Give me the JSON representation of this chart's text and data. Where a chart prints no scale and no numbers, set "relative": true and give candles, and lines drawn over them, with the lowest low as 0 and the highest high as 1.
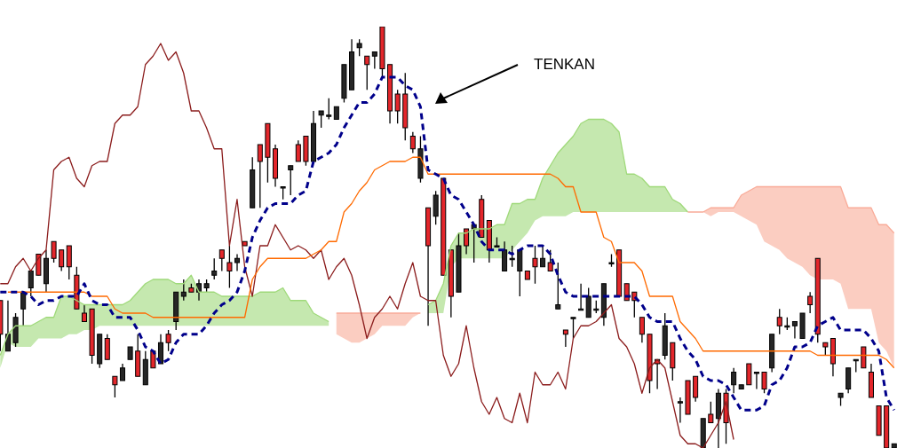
{
  "chart_data": {
    "type": "candlestick",
    "relative": true,
    "categories": [
      null,
      null,
      null,
      null,
      null,
      null,
      null,
      null,
      null,
      null,
      null,
      null,
      null,
      null,
      null,
      null,
      null,
      null,
      null,
      null,
      null,
      null,
      null,
      null,
      null,
      null,
      null,
      null,
      null,
      null,
      null,
      null,
      null,
      null,
      null,
      null,
      null,
      null,
      null,
      null,
      null,
      null,
      null,
      null,
      null,
      null,
      null,
      null,
      null,
      null,
      null,
      null,
      null,
      null,
      null,
      null,
      null,
      null,
      null,
      null,
      null,
      null,
      null,
      null,
      null,
      null,
      null,
      null,
      null,
      null,
      null,
      null,
      null,
      null,
      null,
      null,
      null,
      null,
      null,
      null,
      null,
      null,
      null,
      null,
      null,
      null,
      null,
      null,
      null,
      null,
      null,
      null,
      null,
      null,
      null,
      null,
      null,
      null,
      null,
      null,
      null,
      null,
      null,
      null,
      null,
      null,
      null,
      null,
      null,
      null,
      null,
      null,
      null,
      null,
      null,
      null,
      null,
      null
    ],
    "ohlc": [
      [
        0.35,
        0.35,
        0.23,
        0.27
      ],
      [
        0.23,
        0.35,
        0.23,
        0.27
      ],
      [
        0.25,
        0.32,
        0.24,
        0.31
      ],
      [
        0.33,
        0.37,
        0.29,
        0.37
      ],
      [
        0.38,
        0.42,
        0.36,
        0.42
      ],
      [
        0.46,
        0.46,
        0.41,
        0.41
      ],
      [
        0.39,
        0.47,
        0.37,
        0.45
      ],
      [
        0.49,
        0.49,
        0.44,
        0.45
      ],
      [
        0.47,
        0.47,
        0.42,
        0.43
      ],
      [
        0.48,
        0.48,
        0.4,
        0.43
      ],
      [
        0.41,
        0.43,
        0.33,
        0.33
      ],
      [
        0.32,
        0.34,
        0.3,
        0.3
      ],
      [
        0.33,
        0.33,
        0.2,
        0.22
      ],
      [
        0.2,
        0.27,
        0.19,
        0.27
      ],
      [
        0.26,
        0.27,
        0.21,
        0.21
      ],
      [
        0.17,
        0.17,
        0.12,
        0.15
      ],
      [
        0.16,
        0.2,
        0.16,
        0.19
      ],
      [
        0.21,
        0.24,
        0.21,
        0.24
      ],
      [
        0.23,
        0.27,
        0.17,
        0.17
      ],
      [
        0.15,
        0.23,
        0.15,
        0.21
      ],
      [
        0.23,
        0.23,
        0.19,
        0.19
      ],
      [
        0.2,
        0.27,
        0.2,
        0.25
      ],
      [
        0.27,
        0.28,
        0.23,
        0.25
      ],
      [
        0.3,
        0.37,
        0.28,
        0.37
      ],
      [
        0.36,
        0.4,
        0.35,
        0.37
      ],
      [
        0.38,
        0.39,
        0.37,
        0.37
      ],
      [
        0.37,
        0.4,
        0.35,
        0.39
      ],
      [
        0.38,
        0.4,
        0.37,
        0.39
      ],
      [
        0.41,
        0.45,
        0.4,
        0.42
      ],
      [
        0.47,
        0.47,
        0.42,
        0.45
      ],
      [
        0.44,
        0.48,
        0.38,
        0.42
      ],
      [
        0.44,
        0.46,
        0.42,
        0.45
      ],
      [
        0.49,
        0.49,
        0.48,
        0.48
      ],
      [
        0.57,
        0.69,
        0.57,
        0.66
      ],
      [
        0.72,
        0.72,
        0.57,
        0.68
      ],
      [
        0.77,
        0.77,
        0.63,
        0.69
      ],
      [
        0.71,
        0.72,
        0.62,
        0.64
      ],
      [
        0.62,
        0.62,
        0.59,
        0.62
      ],
      [
        0.66,
        0.67,
        0.6,
        0.67
      ],
      [
        0.72,
        0.73,
        0.68,
        0.68
      ],
      [
        0.74,
        0.74,
        0.67,
        0.68
      ],
      [
        0.68,
        0.8,
        0.68,
        0.77
      ],
      [
        0.79,
        0.8,
        0.76,
        0.8
      ],
      [
        0.79,
        0.83,
        0.78,
        0.79
      ],
      [
        0.78,
        0.81,
        0.78,
        0.81
      ],
      [
        0.83,
        0.91,
        0.82,
        0.91
      ],
      [
        0.85,
        0.97,
        0.85,
        0.94
      ],
      [
        0.95,
        0.97,
        0.93,
        0.96
      ],
      [
        0.93,
        0.93,
        0.85,
        0.91
      ],
      [
        0.93,
        0.94,
        0.9,
        0.94
      ],
      [
        1,
        1,
        0.88,
        0.9
      ],
      [
        0.91,
        0.91,
        0.77,
        0.8
      ],
      [
        0.84,
        0.85,
        0.77,
        0.8
      ],
      [
        0.84,
        0.89,
        0.73,
        0.76
      ],
      [
        0.74,
        0.75,
        0.7,
        0.71
      ],
      [
        0.64,
        0.74,
        0.63,
        0.71
      ],
      [
        0.57,
        0.57,
        0.29,
        0.48
      ],
      [
        0.55,
        0.61,
        0.53,
        0.6
      ],
      [
        0.64,
        0.64,
        0.41,
        0.41
      ],
      [
        0.47,
        0.47,
        0.31,
        0.36
      ],
      [
        0.37,
        0.51,
        0.37,
        0.48
      ],
      [
        0.52,
        0.52,
        0.46,
        0.48
      ],
      [
        0.52,
        0.53,
        0.44,
        0.53
      ],
      [
        0.59,
        0.6,
        0.5,
        0.5
      ],
      [
        0.54,
        0.54,
        0.44,
        0.47
      ],
      [
        0.48,
        0.5,
        0.48,
        0.48
      ],
      [
        0.42,
        0.49,
        0.42,
        0.47
      ],
      [
        0.45,
        0.48,
        0.43,
        0.45
      ],
      [
        0.42,
        0.47,
        0.36,
        0.47
      ],
      [
        0.42,
        0.42,
        0.4,
        0.4
      ],
      [
        0.45,
        0.48,
        0.39,
        0.43
      ],
      [
        0.43,
        0.48,
        0.43,
        0.45
      ],
      [
        0.44,
        0.47,
        0.42,
        0.42
      ],
      [
        0.33,
        0.44,
        0.33,
        0.34
      ],
      [
        0.28,
        0.28,
        0.24,
        0.27
      ],
      [
        0.31,
        0.31,
        0.26,
        0.31
      ],
      [
        0.33,
        0.39,
        0.33,
        0.33
      ],
      [
        0.31,
        0.38,
        0.31,
        0.36
      ],
      [
        0.33,
        0.35,
        0.32,
        0.33
      ],
      [
        0.31,
        0.39,
        0.29,
        0.39
      ],
      [
        0.44,
        0.46,
        0.43,
        0.44
      ],
      [
        0.47,
        0.47,
        0.36,
        0.36
      ],
      [
        0.39,
        0.39,
        0.35,
        0.35
      ],
      [
        0.37,
        0.37,
        0.31,
        0.35
      ],
      [
        0.31,
        0.31,
        0.25,
        0.27
      ],
      [
        0.27,
        0.27,
        0.13,
        0.16
      ],
      [
        0.21,
        0.21,
        0.14,
        0.2
      ],
      [
        0.22,
        0.32,
        0.21,
        0.29
      ],
      [
        0.25,
        0.25,
        0.16,
        0.19
      ],
      [
        0.11,
        0.12,
        0.06,
        0.11
      ],
      [
        0.16,
        0.16,
        0.08,
        0.08
      ],
      [
        0.17,
        0.17,
        0.11,
        0.12
      ],
      [
        0,
        0.07,
        0,
        0.07
      ],
      [
        0.08,
        0.11,
        0.06,
        0.06
      ],
      [
        0.07,
        0.14,
        0,
        0.13
      ],
      [
        0.13,
        0.14,
        0.01,
        0.06
      ],
      [
        0.15,
        0.19,
        0.13,
        0.18
      ],
      [
        0.14,
        0.15,
        0.14,
        0.15
      ],
      [
        0.2,
        0.2,
        0.15,
        0.15
      ],
      [
        0.18,
        0.18,
        0.14,
        0.18
      ],
      [
        0.18,
        0.18,
        0.13,
        0.14
      ],
      [
        0.19,
        0.27,
        0.18,
        0.27
      ],
      [
        0.31,
        0.33,
        0.27,
        0.29
      ],
      [
        0.29,
        0.31,
        0.28,
        0.29
      ],
      [
        0.29,
        0.3,
        0.26,
        0.3
      ],
      [
        0.26,
        0.32,
        0.26,
        0.32
      ],
      [
        0.36,
        0.37,
        0.32,
        0.34
      ],
      [
        0.45,
        0.45,
        0.25,
        0.27
      ],
      [
        0.25,
        0.25,
        0.22,
        0.24
      ],
      [
        0.26,
        0.26,
        0.17,
        0.2
      ],
      [
        0.12,
        0.13,
        0.1,
        0.13
      ],
      [
        0.14,
        0.19,
        0.13,
        0.19
      ],
      [
        0.21,
        0.21,
        0.18,
        0.21
      ],
      [
        0.24,
        0.24,
        0.19,
        0.19
      ],
      [
        0.18,
        0.2,
        0.12,
        0.12
      ],
      [
        0.1,
        0.1,
        0.03,
        0.03
      ],
      [
        0.1,
        0.1,
        0,
        0
      ],
      [
        0,
        0.01,
        0,
        0.01
      ]
    ],
    "colors": [
      "#e3262b",
      "#262626",
      "#262626",
      "#262626",
      "#262626",
      "#e3262b",
      "#262626",
      "#e3262b",
      "#e3262b",
      "#e3262b",
      "#e3262b",
      "#e3262b",
      "#e3262b",
      "#262626",
      "#e3262b",
      "#e3262b",
      "#262626",
      "#262626",
      "#e3262b",
      "#262626",
      "#e3262b",
      "#262626",
      "#e3262b",
      "#262626",
      "#262626",
      "#e3262b",
      "#262626",
      "#262626",
      "#262626",
      "#e3262b",
      "#e3262b",
      "#262626",
      "#e3262b",
      "#262626",
      "#e3262b",
      "#e3262b",
      "#e3262b",
      "#262626",
      "#262626",
      "#e3262b",
      "#e3262b",
      "#262626",
      "#262626",
      "#262626",
      "#262626",
      "#262626",
      "#262626",
      "#262626",
      "#e3262b",
      "#262626",
      "#e3262b",
      "#e3262b",
      "#e3262b",
      "#e3262b",
      "#e3262b",
      "#262626",
      "#e3262b",
      "#262626",
      "#e3262b",
      "#e3262b",
      "#262626",
      "#e3262b",
      "#262626",
      "#e3262b",
      "#e3262b",
      "#262626",
      "#262626",
      "#262626",
      "#262626",
      "#e3262b",
      "#e3262b",
      "#262626",
      "#e3262b",
      "#262626",
      "#e3262b",
      "#262626",
      "#262626",
      "#262626",
      "#262626",
      "#262626",
      "#262626",
      "#e3262b",
      "#e3262b",
      "#e3262b",
      "#e3262b",
      "#e3262b",
      "#e3262b",
      "#262626",
      "#e3262b",
      "#262626",
      "#e3262b",
      "#e3262b",
      "#262626",
      "#e3262b",
      "#262626",
      "#e3262b",
      "#262626",
      "#262626",
      "#e3262b",
      "#262626",
      "#e3262b",
      "#262626",
      "#e3262b",
      "#262626",
      "#262626",
      "#262626",
      "#e3262b",
      "#e3262b",
      "#e3262b",
      "#e3262b",
      "#262626",
      "#262626",
      "#262626",
      "#e3262b",
      "#e3262b",
      "#e3262b",
      "#e3262b",
      "#262626"
    ],
    "series": [
      {
        "type": "line",
        "color": "#9fd97a",
        "values": [
          0.22,
          0.27,
          0.29,
          0.29,
          0.29,
          0.3,
          0.31,
          0.31,
          0.36,
          0.36,
          0.35,
          0.34,
          0.34,
          0.34,
          0.34,
          0.34,
          0.34,
          0.35,
          0.37,
          0.39,
          0.4,
          0.4,
          0.4,
          0.39,
          0.39,
          0.41,
          0.37,
          0.37,
          0.37,
          0.36,
          0.36,
          0.36,
          0.36,
          0.36,
          0.37,
          0.37,
          0.37,
          0.38,
          0.35,
          0.35,
          0.35,
          0.32,
          0.31,
          0.3,
          null,
          null,
          null,
          null,
          null,
          null,
          null,
          null,
          null,
          null,
          null,
          null,
          0.34,
          0.35,
          0.39,
          0.48,
          0.51,
          0.51,
          0.52,
          0.52,
          0.52,
          0.53,
          0.53,
          0.58,
          0.58,
          0.59,
          0.59,
          0.64,
          0.67,
          0.7,
          0.72,
          0.74,
          0.77,
          0.78,
          0.78,
          0.78,
          0.77,
          0.75,
          0.65,
          0.65,
          0.64,
          0.62,
          0.62,
          0.62,
          0.59,
          0.58,
          0.56,
          null,
          null,
          null,
          null,
          null,
          null,
          null,
          null,
          null,
          null,
          null,
          null,
          null,
          null,
          null,
          null,
          null,
          null,
          null,
          null,
          null,
          null,
          null,
          null,
          null,
          null,
          null
        ],
        "upper": [
          0.22,
          0.27,
          0.29,
          0.29,
          0.29,
          0.3,
          0.31,
          0.31,
          0.36,
          0.36,
          0.35,
          0.34,
          0.34,
          0.34,
          0.34,
          0.34,
          0.34,
          0.35,
          0.37,
          0.39,
          0.4,
          0.4,
          0.4,
          0.39,
          0.39,
          0.41,
          0.37,
          0.37,
          0.37,
          0.36,
          0.36,
          0.36,
          0.36,
          0.36,
          0.37,
          0.37,
          0.37,
          0.38,
          0.35,
          0.35,
          0.35,
          0.32,
          0.31,
          0.3,
          null,
          null,
          null,
          null,
          null,
          null,
          null,
          null,
          null,
          null,
          null,
          null,
          0.34,
          0.35,
          0.39,
          0.48,
          0.51,
          0.51,
          0.52,
          0.52,
          0.52,
          0.53,
          0.53,
          0.58,
          0.58,
          0.59,
          0.59,
          0.64,
          0.67,
          0.7,
          0.72,
          0.74,
          0.77,
          0.78,
          0.78,
          0.78,
          0.77,
          0.75,
          0.65,
          0.65,
          0.64,
          0.62,
          0.62,
          0.62,
          0.59,
          0.58,
          0.56,
          null,
          null,
          null,
          null,
          null,
          null,
          null,
          null,
          null,
          null,
          null,
          null,
          null,
          null,
          null,
          null,
          null,
          null,
          null,
          null,
          null,
          null,
          null,
          null,
          null,
          null,
          null
        ],
        "lower": [
          0.19,
          0.25,
          0.24,
          0.24,
          0.24,
          0.26,
          0.26,
          0.26,
          0.26,
          0.27,
          0.27,
          0.28,
          0.28,
          0.29,
          0.29,
          0.29,
          0.29,
          0.29,
          0.29,
          0.29,
          0.29,
          0.29,
          0.29,
          0.29,
          0.29,
          0.29,
          0.29,
          0.29,
          0.29,
          0.29,
          0.29,
          0.29,
          0.29,
          0.29,
          0.29,
          0.29,
          0.29,
          0.29,
          0.29,
          0.29,
          0.29,
          0.29,
          0.29,
          0.29,
          null,
          null,
          null,
          null,
          null,
          null,
          null,
          null,
          null,
          null,
          null,
          null,
          0.32,
          0.32,
          0.32,
          0.43,
          0.45,
          0.45,
          0.45,
          0.45,
          0.45,
          0.45,
          0.45,
          0.47,
          0.49,
          0.51,
          0.54,
          0.55,
          0.55,
          0.55,
          0.55,
          0.56,
          0.56,
          0.56,
          0.56,
          0.56,
          0.56,
          0.56,
          0.56,
          0.56,
          0.56,
          0.56,
          0.56,
          0.56,
          0.56,
          0.56,
          0.56,
          null,
          null,
          null,
          null,
          null,
          null,
          null,
          null,
          null,
          null,
          null,
          null,
          null,
          null,
          null,
          null,
          null,
          null,
          null,
          null,
          null,
          null,
          null,
          null,
          null,
          null,
          null
        ]
      },
      {
        "type": "line",
        "color": "#f9ab98",
        "values": [
          null,
          null,
          null,
          null,
          null,
          null,
          null,
          null,
          null,
          null,
          null,
          null,
          null,
          null,
          null,
          null,
          null,
          null,
          null,
          null,
          null,
          null,
          null,
          null,
          null,
          null,
          null,
          null,
          null,
          null,
          null,
          null,
          null,
          null,
          null,
          null,
          null,
          null,
          null,
          null,
          null,
          null,
          null,
          null,
          0.32,
          0.32,
          0.32,
          0.32,
          0.32,
          0.32,
          0.32,
          0.32,
          0.32,
          0.32,
          0.32,
          0.32,
          null,
          null,
          null,
          null,
          null,
          null,
          null,
          null,
          null,
          null,
          null,
          null,
          null,
          null,
          null,
          null,
          null,
          null,
          null,
          null,
          null,
          null,
          null,
          null,
          null,
          null,
          null,
          null,
          null,
          null,
          null,
          null,
          null,
          null,
          0.56,
          0.56,
          0.56,
          0.57,
          0.57,
          0.57,
          0.57,
          0.6,
          0.61,
          0.62,
          0.62,
          0.62,
          0.62,
          0.62,
          0.62,
          0.62,
          0.62,
          0.62,
          0.62,
          0.62,
          0.62,
          0.57,
          0.57,
          0.57,
          0.57,
          0.53,
          0.53,
          0.51
        ],
        "upper": [
          null,
          null,
          null,
          null,
          null,
          null,
          null,
          null,
          null,
          null,
          null,
          null,
          null,
          null,
          null,
          null,
          null,
          null,
          null,
          null,
          null,
          null,
          null,
          null,
          null,
          null,
          null,
          null,
          null,
          null,
          null,
          null,
          null,
          null,
          null,
          null,
          null,
          null,
          null,
          null,
          null,
          null,
          null,
          null,
          0.32,
          0.32,
          0.32,
          0.32,
          0.32,
          0.32,
          0.32,
          0.32,
          0.32,
          0.32,
          0.32,
          0.32,
          null,
          null,
          null,
          null,
          null,
          null,
          null,
          null,
          null,
          null,
          null,
          null,
          null,
          null,
          null,
          null,
          null,
          null,
          null,
          null,
          null,
          null,
          null,
          null,
          null,
          null,
          null,
          null,
          null,
          null,
          null,
          null,
          null,
          null,
          0.56,
          0.56,
          0.56,
          0.57,
          0.57,
          0.57,
          0.57,
          0.6,
          0.61,
          0.62,
          0.62,
          0.62,
          0.62,
          0.62,
          0.62,
          0.62,
          0.62,
          0.62,
          0.62,
          0.62,
          0.62,
          0.57,
          0.57,
          0.57,
          0.57,
          0.53,
          0.53,
          0.51
        ],
        "lower": [
          null,
          null,
          null,
          null,
          null,
          null,
          null,
          null,
          null,
          null,
          null,
          null,
          null,
          null,
          null,
          null,
          null,
          null,
          null,
          null,
          null,
          null,
          null,
          null,
          null,
          null,
          null,
          null,
          null,
          null,
          null,
          null,
          null,
          null,
          null,
          null,
          null,
          null,
          null,
          null,
          null,
          null,
          null,
          null,
          0.27,
          0.26,
          0.25,
          0.25,
          0.26,
          0.27,
          0.29,
          0.29,
          0.29,
          0.29,
          0.31,
          0.32,
          null,
          null,
          null,
          null,
          null,
          null,
          null,
          null,
          null,
          null,
          null,
          null,
          null,
          null,
          null,
          null,
          null,
          null,
          null,
          null,
          null,
          null,
          null,
          null,
          null,
          null,
          null,
          null,
          null,
          null,
          null,
          null,
          null,
          null,
          0.56,
          0.56,
          0.56,
          0.55,
          0.56,
          0.56,
          0.56,
          0.55,
          0.54,
          0.53,
          0.49,
          0.48,
          0.47,
          0.45,
          0.44,
          0.43,
          0.41,
          0.4,
          0.4,
          0.4,
          0.39,
          0.33,
          0.33,
          0.33,
          0.33,
          0.25,
          0.23,
          0.19
        ]
      },
      {
        "type": "line",
        "color": "#8b1c1c",
        "values": [
          0.39,
          0.39,
          0.43,
          0.45,
          0.42,
          0.45,
          0.47,
          0.66,
          0.68,
          0.69,
          0.64,
          0.62,
          0.67,
          0.68,
          0.68,
          0.77,
          0.79,
          0.79,
          0.81,
          0.91,
          0.93,
          0.96,
          0.92,
          0.94,
          0.89,
          0.8,
          0.8,
          0.76,
          0.71,
          0.71,
          0.48,
          0.59,
          0.43,
          0.36,
          0.48,
          0.48,
          0.53,
          0.5,
          0.47,
          0.48,
          0.47,
          0.45,
          0.47,
          0.4,
          0.43,
          0.45,
          0.41,
          0.34,
          0.26,
          0.31,
          0.33,
          0.36,
          0.33,
          0.39,
          0.44,
          0.36,
          0.35,
          0.35,
          0.22,
          0.17,
          0.2,
          0.29,
          0.19,
          0.11,
          0.08,
          0.12,
          0.07,
          0.06,
          0.13,
          0.06,
          0.18,
          0.15,
          0.15,
          0.18,
          0.14,
          0.26,
          0.29,
          0.29,
          0.3,
          0.32,
          0.34,
          0.26,
          0.24,
          0.2,
          0.13,
          0.19,
          0.21,
          0.19,
          0.11,
          0.03,
          0.01,
          0.01,
          0,
          0.03,
          0.06,
          0.11,
          0.02,
          null,
          null,
          null,
          null,
          null,
          null,
          null,
          null,
          null,
          null,
          null,
          null,
          null,
          null,
          null,
          null,
          null,
          null,
          null,
          null,
          null
        ]
      },
      {
        "type": "line",
        "color": "#ff6a00",
        "values": [
          null,
          0.37,
          0.37,
          0.37,
          0.37,
          0.37,
          0.37,
          0.37,
          0.37,
          0.37,
          0.37,
          0.37,
          0.36,
          0.36,
          0.36,
          0.33,
          0.32,
          0.32,
          0.32,
          0.32,
          0.31,
          0.31,
          0.31,
          0.31,
          0.31,
          0.31,
          0.31,
          0.31,
          0.31,
          0.31,
          0.31,
          0.31,
          0.31,
          0.4,
          0.43,
          0.45,
          0.45,
          0.45,
          0.45,
          0.45,
          0.45,
          0.46,
          0.47,
          0.49,
          0.49,
          0.56,
          0.58,
          0.61,
          0.63,
          0.66,
          0.67,
          0.68,
          0.68,
          0.68,
          0.69,
          0.69,
          0.65,
          0.65,
          0.65,
          0.65,
          0.65,
          0.65,
          0.65,
          0.65,
          0.65,
          0.65,
          0.65,
          0.65,
          0.65,
          0.65,
          0.65,
          0.65,
          0.65,
          0.64,
          0.62,
          0.62,
          0.56,
          0.56,
          0.56,
          0.5,
          0.49,
          0.44,
          0.44,
          0.44,
          0.42,
          0.36,
          0.36,
          0.36,
          0.36,
          0.3,
          0.28,
          0.26,
          0.23,
          0.23,
          0.23,
          0.23,
          0.23,
          0.23,
          0.23,
          0.23,
          0.23,
          0.23,
          0.23,
          0.23,
          0.23,
          0.23,
          0.23,
          0.22,
          0.22,
          0.22,
          0.22,
          0.22,
          0.22,
          0.22,
          0.22,
          0.22,
          0.21,
          0.19
        ]
      },
      {
        "type": "line",
        "color": "#00008b",
        "line_style": "dashed",
        "values": [
          0.37,
          0.37,
          0.37,
          0.37,
          0.36,
          0.34,
          0.35,
          0.35,
          0.36,
          0.36,
          0.36,
          0.39,
          0.35,
          0.34,
          0.34,
          0.31,
          0.31,
          0.31,
          0.28,
          0.24,
          0.23,
          0.2,
          0.21,
          0.25,
          0.27,
          0.27,
          0.27,
          0.29,
          0.32,
          0.34,
          0.35,
          0.37,
          0.42,
          0.5,
          0.54,
          0.57,
          0.58,
          0.58,
          0.58,
          0.6,
          0.61,
          0.68,
          0.69,
          0.7,
          0.72,
          0.76,
          0.79,
          0.82,
          0.82,
          0.84,
          0.88,
          0.88,
          0.88,
          0.86,
          0.85,
          0.81,
          0.66,
          0.65,
          0.64,
          0.6,
          0.59,
          0.56,
          0.53,
          0.49,
          0.47,
          0.47,
          0.47,
          0.46,
          0.47,
          0.48,
          0.48,
          0.48,
          0.46,
          0.41,
          0.37,
          0.36,
          0.36,
          0.36,
          0.36,
          0.36,
          0.36,
          0.36,
          0.36,
          0.36,
          0.34,
          0.31,
          0.3,
          0.3,
          0.3,
          0.26,
          0.23,
          0.21,
          0.17,
          0.16,
          0.16,
          0.15,
          0.12,
          0.09,
          0.09,
          0.09,
          0.1,
          0.15,
          0.16,
          0.19,
          0.24,
          0.24,
          0.25,
          0.29,
          0.3,
          0.31,
          0.28,
          0.28,
          0.28,
          0.28,
          0.26,
          0.23,
          0.12,
          0.09
        ]
      }
    ],
    "annotations": [
      "TENKAN"
    ]
  }
}
